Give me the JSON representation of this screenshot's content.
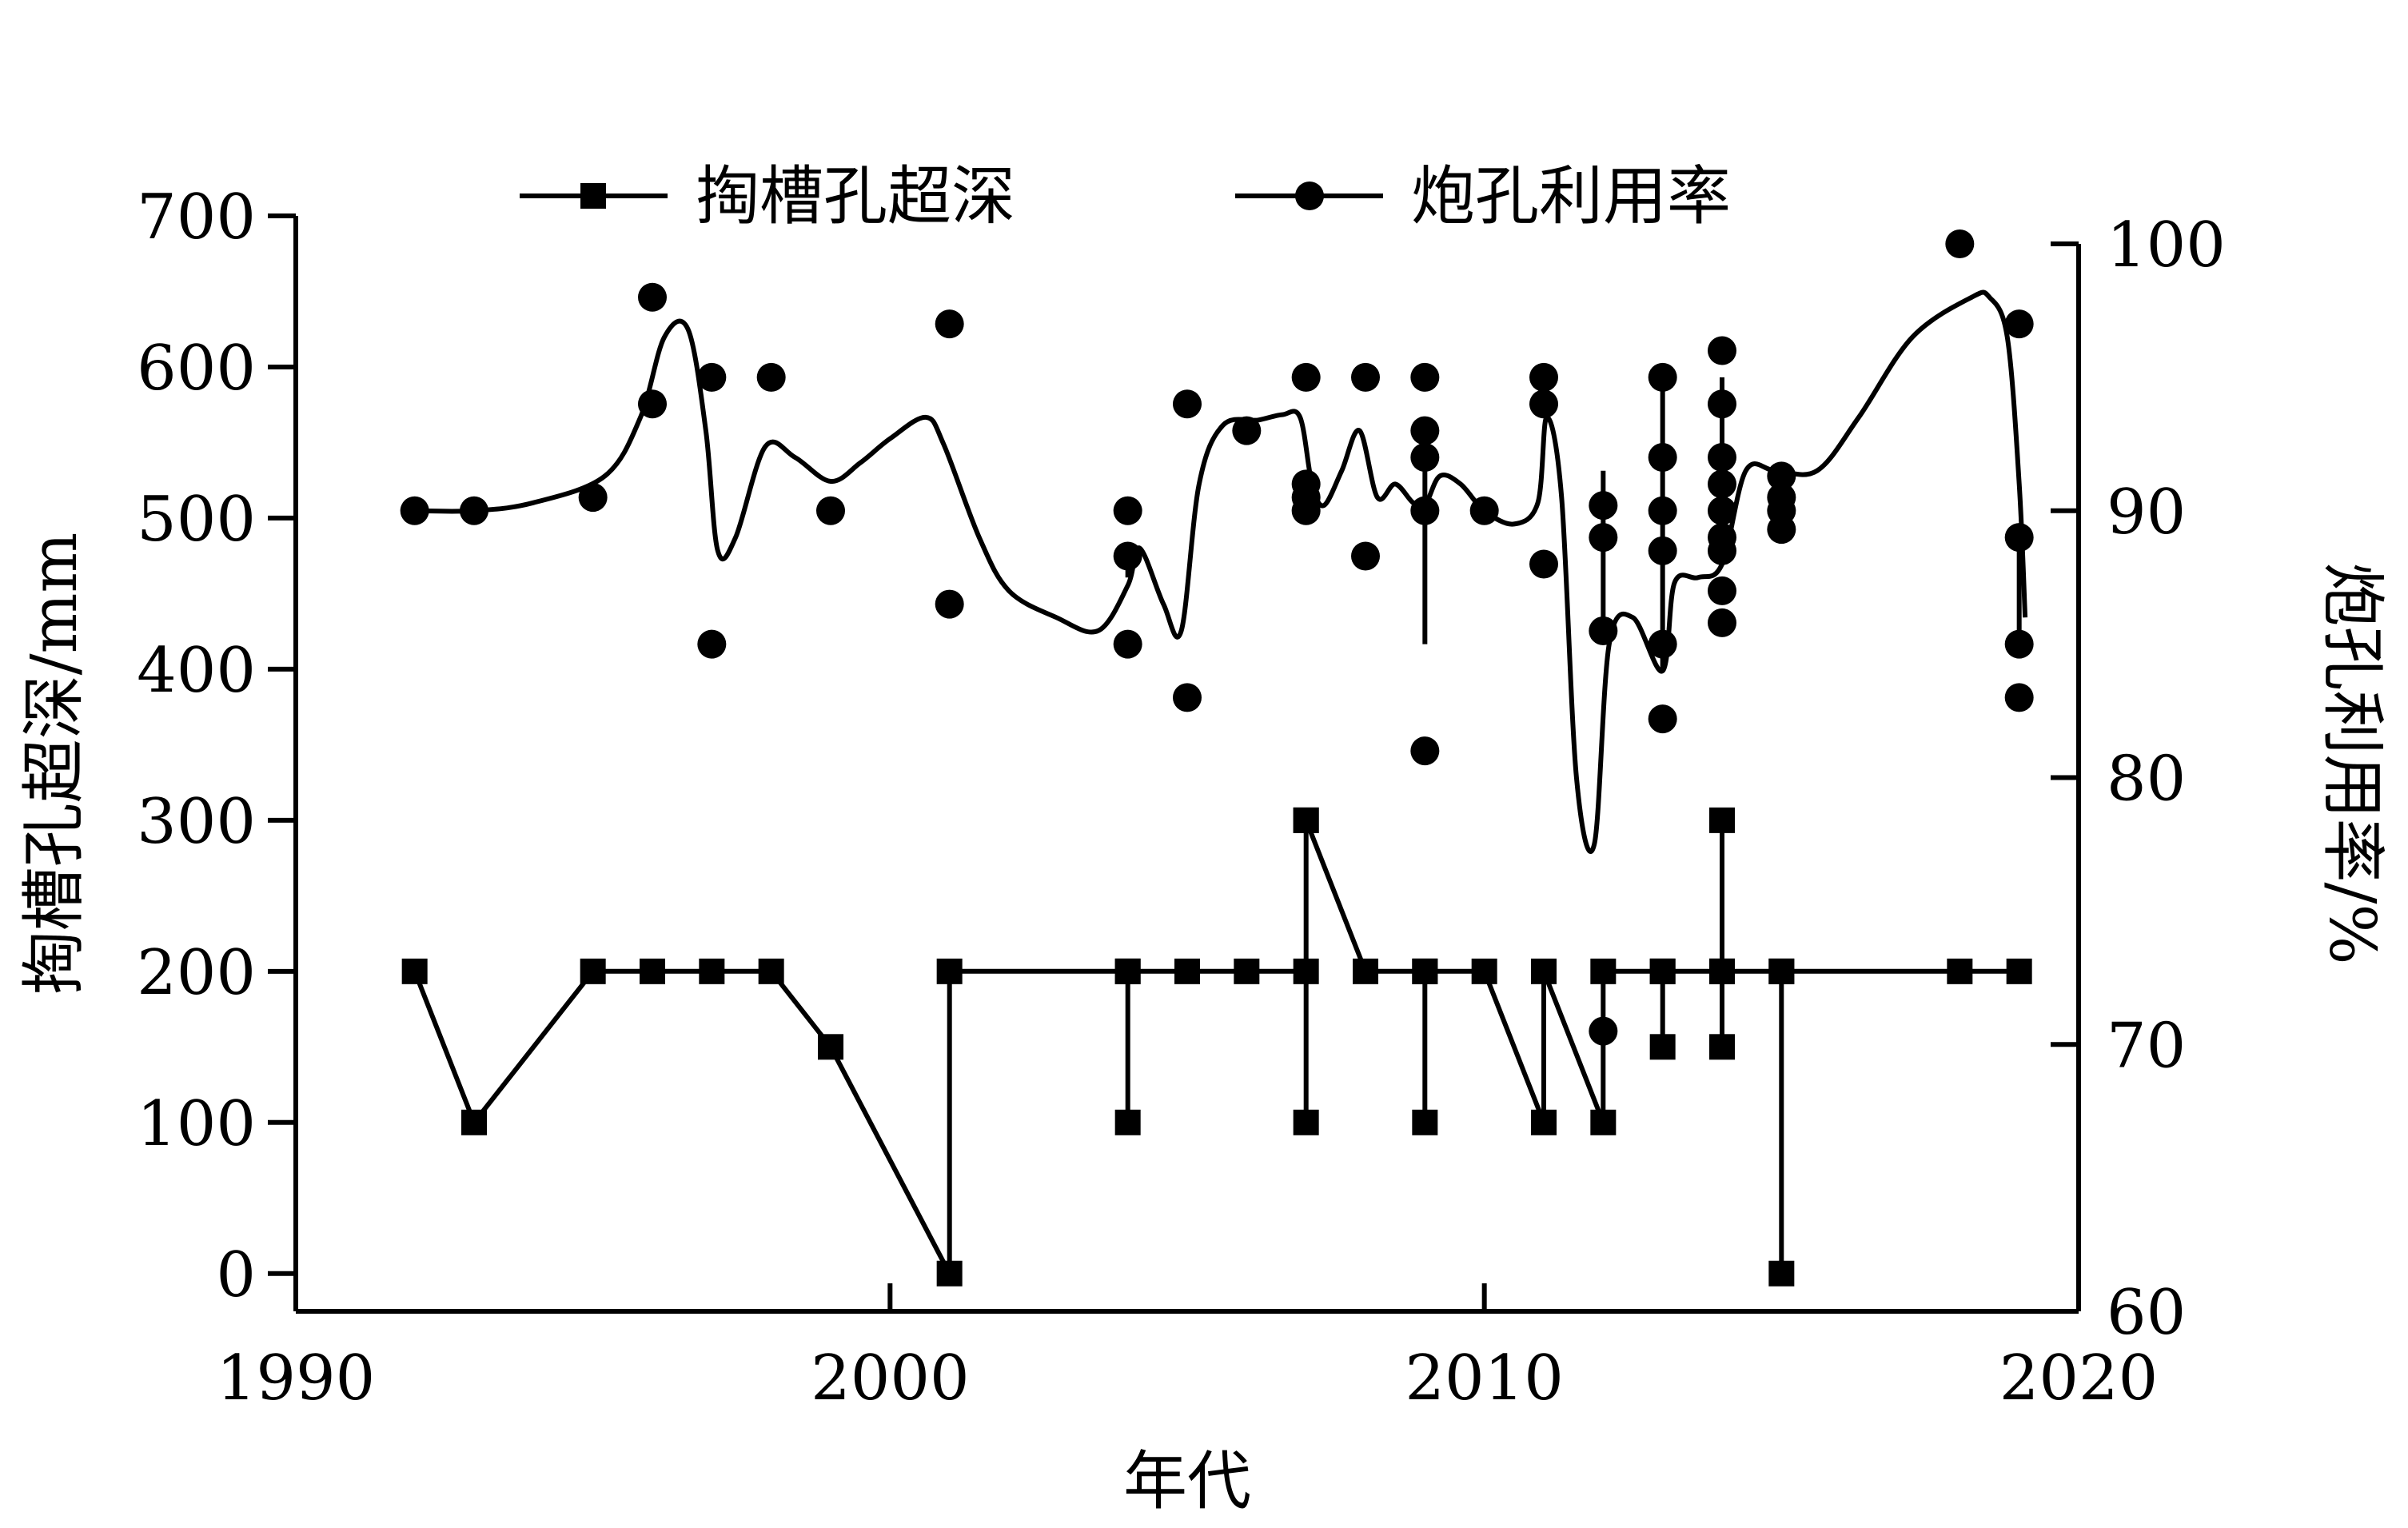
{
  "chart_data": {
    "type": "line",
    "title": "",
    "xlabel": "年代",
    "ylabel_left": "掏槽孔超深/mm",
    "ylabel_right": "炮孔利用率/%",
    "xlim": [
      1990,
      2020
    ],
    "ylim_left": [
      -25,
      700
    ],
    "ylim_right": [
      60,
      100
    ],
    "x_ticks": [
      "1990",
      "2000",
      "2010",
      "2020"
    ],
    "y_left_ticks": [
      "0",
      "100",
      "200",
      "300",
      "400",
      "500",
      "600",
      "700"
    ],
    "y_right_ticks": [
      "60",
      "70",
      "80",
      "90",
      "100"
    ],
    "grid": false,
    "legend_position": "top",
    "series": [
      {
        "name": "掏槽孔超深",
        "axis": "left",
        "marker": "square",
        "points": [
          [
            1992,
            200
          ],
          [
            1993,
            100
          ],
          [
            1995,
            200
          ],
          [
            1996,
            200
          ],
          [
            1997,
            200
          ],
          [
            1998,
            200
          ],
          [
            1999,
            150
          ],
          [
            2001,
            0
          ],
          [
            2001,
            200
          ],
          [
            2004,
            200
          ],
          [
            2004,
            100
          ],
          [
            2004,
            200
          ],
          [
            2005,
            200
          ],
          [
            2006,
            200
          ],
          [
            2007,
            200
          ],
          [
            2007,
            300
          ],
          [
            2007,
            100
          ],
          [
            2007,
            300
          ],
          [
            2008,
            200
          ],
          [
            2009,
            200
          ],
          [
            2009,
            100
          ],
          [
            2009,
            200
          ],
          [
            2010,
            200
          ],
          [
            2011,
            100
          ],
          [
            2011,
            200
          ],
          [
            2012,
            100
          ],
          [
            2012,
            200
          ],
          [
            2013,
            200
          ],
          [
            2013,
            150
          ],
          [
            2013,
            200
          ],
          [
            2014,
            200
          ],
          [
            2014,
            300
          ],
          [
            2014,
            150
          ],
          [
            2014,
            200
          ],
          [
            2015,
            200
          ],
          [
            2015,
            0
          ],
          [
            2015,
            200
          ],
          [
            2018,
            200
          ],
          [
            2019,
            200
          ]
        ]
      },
      {
        "name": "炮孔利用率",
        "axis": "right",
        "marker": "circle",
        "points": [
          [
            1992,
            90
          ],
          [
            1993,
            90
          ],
          [
            1995,
            90.5
          ],
          [
            1996,
            94
          ],
          [
            1996,
            98
          ],
          [
            1997,
            95
          ],
          [
            1997,
            85
          ],
          [
            1998,
            95
          ],
          [
            1999,
            90
          ],
          [
            2001,
            97
          ],
          [
            2001,
            86.5
          ],
          [
            2004,
            90
          ],
          [
            2004,
            88.3
          ],
          [
            2004,
            85
          ],
          [
            2005,
            94
          ],
          [
            2005,
            83
          ],
          [
            2006,
            93
          ],
          [
            2007,
            95
          ],
          [
            2007,
            91
          ],
          [
            2007,
            90.5
          ],
          [
            2007,
            90
          ],
          [
            2008,
            95
          ],
          [
            2008,
            88.3
          ],
          [
            2009,
            95
          ],
          [
            2009,
            93
          ],
          [
            2009,
            92
          ],
          [
            2009,
            90
          ],
          [
            2009,
            81
          ],
          [
            2010,
            90
          ],
          [
            2011,
            95
          ],
          [
            2011,
            94
          ],
          [
            2011,
            88
          ],
          [
            2012,
            90.2
          ],
          [
            2012,
            89
          ],
          [
            2012,
            85.5
          ],
          [
            2012,
            70.5
          ],
          [
            2013,
            95
          ],
          [
            2013,
            92
          ],
          [
            2013,
            90
          ],
          [
            2013,
            88.5
          ],
          [
            2013,
            85
          ],
          [
            2013,
            82.2
          ],
          [
            2014,
            96
          ],
          [
            2014,
            94
          ],
          [
            2014,
            92
          ],
          [
            2014,
            91
          ],
          [
            2014,
            90
          ],
          [
            2014,
            89
          ],
          [
            2014,
            88.5
          ],
          [
            2014,
            87
          ],
          [
            2014,
            85.8
          ],
          [
            2015,
            91.3
          ],
          [
            2015,
            90.5
          ],
          [
            2015,
            90
          ],
          [
            2015,
            89.3
          ],
          [
            2018,
            100
          ],
          [
            2019,
            97
          ],
          [
            2019,
            89
          ],
          [
            2019,
            85
          ],
          [
            2019,
            83
          ]
        ],
        "curve": [
          [
            1992,
            90
          ],
          [
            1993,
            90
          ],
          [
            1994,
            90.3
          ],
          [
            1995.2,
            91.3
          ],
          [
            1995.8,
            93.5
          ],
          [
            1996.2,
            96.5
          ],
          [
            1996.6,
            96.8
          ],
          [
            1996.9,
            93
          ],
          [
            1997.1,
            88.5
          ],
          [
            1997.4,
            89
          ],
          [
            1997.9,
            92.4
          ],
          [
            1998.4,
            92
          ],
          [
            1999,
            91.1
          ],
          [
            1999.5,
            91.8
          ],
          [
            2000,
            92.7
          ],
          [
            2000.6,
            93.5
          ],
          [
            2000.9,
            92.5
          ],
          [
            2001.5,
            89
          ],
          [
            2002,
            87
          ],
          [
            2002.8,
            86
          ],
          [
            2003.5,
            85.5
          ],
          [
            2004,
            87.2
          ],
          [
            2004.2,
            88.6
          ],
          [
            2004.6,
            86.5
          ],
          [
            2004.9,
            85.5
          ],
          [
            2005.2,
            91
          ],
          [
            2005.6,
            93.2
          ],
          [
            2006.2,
            93.4
          ],
          [
            2006.6,
            93.6
          ],
          [
            2006.9,
            93.5
          ],
          [
            2007.1,
            91
          ],
          [
            2007.3,
            90.2
          ],
          [
            2007.6,
            91.5
          ],
          [
            2007.9,
            93
          ],
          [
            2008.2,
            90.5
          ],
          [
            2008.5,
            91
          ],
          [
            2008.8,
            90.3
          ],
          [
            2009,
            90.2
          ],
          [
            2009.25,
            91.3
          ],
          [
            2009.6,
            91
          ],
          [
            2010,
            90
          ],
          [
            2010.5,
            89.5
          ],
          [
            2010.9,
            90.3
          ],
          [
            2011.05,
            93.5
          ],
          [
            2011.3,
            90.5
          ],
          [
            2011.55,
            80
          ],
          [
            2011.85,
            77.5
          ],
          [
            2012.1,
            85
          ],
          [
            2012.5,
            86
          ],
          [
            2013,
            84
          ],
          [
            2013.2,
            87.3
          ],
          [
            2013.6,
            87.5
          ],
          [
            2014,
            88
          ],
          [
            2014.4,
            91.5
          ],
          [
            2014.9,
            91.5
          ],
          [
            2015.6,
            91.5
          ],
          [
            2016.3,
            93.5
          ],
          [
            2017.2,
            96.5
          ],
          [
            2018.2,
            98
          ],
          [
            2018.5,
            98
          ],
          [
            2018.8,
            96.5
          ],
          [
            2019,
            91
          ],
          [
            2019.1,
            86
          ]
        ],
        "vertical_segments": [
          [
            2004,
            87.5,
            88.8
          ],
          [
            2009,
            85,
            92
          ],
          [
            2012,
            85,
            91.5
          ],
          [
            2013,
            84,
            94.5
          ],
          [
            2014,
            88,
            95
          ],
          [
            2015,
            89.5,
            91
          ],
          [
            2019,
            85,
            89
          ]
        ]
      }
    ]
  }
}
